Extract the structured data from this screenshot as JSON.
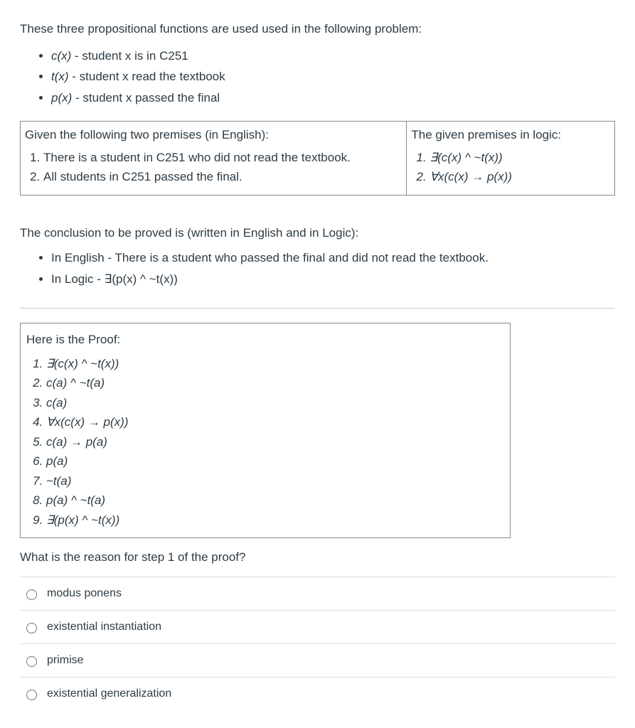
{
  "intro": "These three propositional functions are used used in the following problem:",
  "functions": [
    {
      "sym": "c(x)",
      "desc": " - student x is in C251"
    },
    {
      "sym": "t(x)",
      "desc": " - student x read the textbook"
    },
    {
      "sym": "p(x)",
      "desc": " - student x passed the final"
    }
  ],
  "premises_table": {
    "left_heading": "Given the following two premises (in English):",
    "left_items": [
      "There is a student in C251 who did not read the textbook.",
      "All students in C251 passed the final."
    ],
    "right_heading": "The given premises in logic:",
    "right_items": [
      "∃(c(x) ^ ~t(x))",
      "∀x(c(x) → p(x))"
    ]
  },
  "conclusion_heading": "The conclusion to be proved is (written in English and in Logic):",
  "conclusion_items": [
    "In English - There is a student who passed the final and did not read the textbook.",
    "In Logic - ∃(p(x) ^ ~t(x))"
  ],
  "proof_heading": "Here is the Proof:",
  "proof_steps": [
    "∃(c(x) ^ ~t(x))",
    "c(a) ^ ~t(a)",
    "c(a)",
    "∀x(c(x) → p(x))",
    "c(a) → p(a)",
    "p(a)",
    "~t(a)",
    "p(a) ^ ~t(a)",
    "∃(p(x) ^ ~t(x))"
  ],
  "question": "What is the reason for step 1 of the proof?",
  "options": [
    "modus ponens",
    "existential instantiation",
    "primise",
    "existential generalization"
  ]
}
